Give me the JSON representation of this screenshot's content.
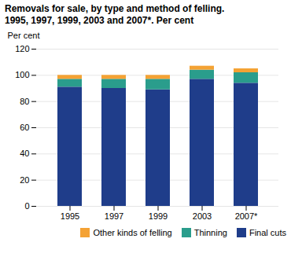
{
  "chart_data": {
    "type": "bar",
    "title": "Removals for sale, by type and method of felling.",
    "subtitle": "1995, 1997, 1999, 2003 and 2007*. Per cent",
    "ylabel": "Per cent",
    "categories": [
      "1995",
      "1997",
      "1999",
      "2003",
      "2007*"
    ],
    "series": [
      {
        "name": "Final cuts",
        "color": "#1f3d8a",
        "values": [
          91,
          90,
          89,
          97,
          94
        ]
      },
      {
        "name": "Thinning",
        "color": "#2a9d8c",
        "values": [
          6,
          7,
          8,
          7,
          8
        ]
      },
      {
        "name": "Other kinds of felling",
        "color": "#f4a234",
        "values": [
          3,
          3,
          3,
          3,
          3
        ]
      }
    ],
    "stacked": true,
    "ylim": [
      0,
      120
    ],
    "yticks": [
      0,
      20,
      40,
      60,
      80,
      100,
      120
    ],
    "grid": true,
    "legend": "lower right"
  }
}
